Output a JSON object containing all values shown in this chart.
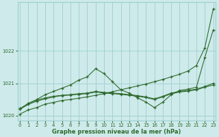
{
  "xlabel": "Graphe pression niveau de la mer (hPa)",
  "background_color": "#ceeaea",
  "grid_color": "#9ecece",
  "line_color": "#2d6a2d",
  "ylim": [
    1019.85,
    1023.5
  ],
  "xlim": [
    -0.3,
    23.3
  ],
  "yticks": [
    1020,
    1021,
    1022
  ],
  "xticks": [
    0,
    1,
    2,
    3,
    4,
    5,
    6,
    7,
    8,
    9,
    10,
    11,
    12,
    13,
    14,
    15,
    16,
    17,
    18,
    19,
    20,
    21,
    22,
    23
  ],
  "series": [
    [
      1020.05,
      1020.18,
      1020.25,
      1020.36,
      1020.41,
      1020.47,
      1020.5,
      1020.54,
      1020.58,
      1020.63,
      1020.68,
      1020.74,
      1020.8,
      1020.86,
      1020.92,
      1020.98,
      1021.05,
      1021.12,
      1021.2,
      1021.28,
      1021.38,
      1021.55,
      1022.1,
      1023.3
    ],
    [
      1020.2,
      1020.38,
      1020.5,
      1020.65,
      1020.75,
      1020.85,
      1020.95,
      1021.1,
      1021.2,
      1021.45,
      1021.3,
      1021.05,
      1020.8,
      1020.7,
      1020.55,
      1020.42,
      1020.25,
      1020.42,
      1020.65,
      1020.78,
      1020.82,
      1020.88,
      1021.8,
      1022.65
    ],
    [
      1020.22,
      1020.38,
      1020.48,
      1020.55,
      1020.6,
      1020.63,
      1020.65,
      1020.68,
      1020.7,
      1020.75,
      1020.72,
      1020.7,
      1020.68,
      1020.65,
      1020.62,
      1020.58,
      1020.52,
      1020.6,
      1020.7,
      1020.75,
      1020.78,
      1020.82,
      1020.9,
      1021.0
    ],
    [
      1020.2,
      1020.35,
      1020.45,
      1020.52,
      1020.58,
      1020.62,
      1020.64,
      1020.66,
      1020.68,
      1020.73,
      1020.7,
      1020.68,
      1020.66,
      1020.63,
      1020.6,
      1020.56,
      1020.5,
      1020.58,
      1020.68,
      1020.73,
      1020.76,
      1020.8,
      1020.88,
      1020.95
    ]
  ]
}
